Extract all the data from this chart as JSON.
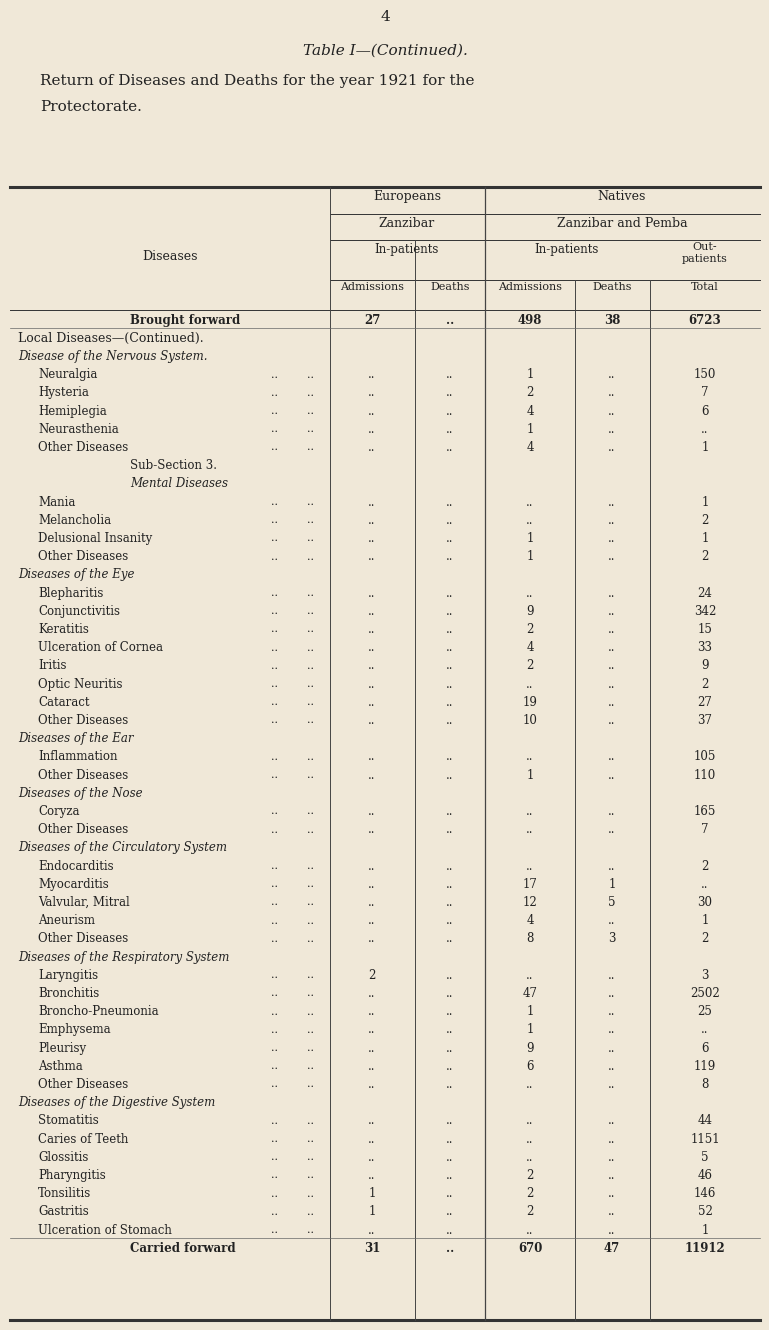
{
  "page_number": "4",
  "title_line1": "Table I—(Continued).",
  "title_line2": "Return of Diseases and Deaths for the year 1921 for the",
  "title_line3": "Protectorate.",
  "bg_color": "#f0e8d8",
  "text_color": "#222222",
  "rows": [
    {
      "label": "Brought forward",
      "indent": 3,
      "style": "normal",
      "eu_adm": "27",
      "eu_dth": "..",
      "nat_adm": "498",
      "nat_dth": "38",
      "total": "6723",
      "bold": true,
      "dots": true
    },
    {
      "label": "Local Diseases—(Continued).",
      "indent": 0,
      "style": "smallcaps",
      "eu_adm": "",
      "eu_dth": "",
      "nat_adm": "",
      "nat_dth": "",
      "total": ""
    },
    {
      "label": "Disease of the Nervous System.",
      "indent": 0,
      "style": "italic",
      "eu_adm": "",
      "eu_dth": "",
      "nat_adm": "",
      "nat_dth": "",
      "total": ""
    },
    {
      "label": "Neuralgia",
      "indent": 1,
      "style": "normal",
      "eu_adm": "..",
      "eu_dth": "..",
      "nat_adm": "1",
      "nat_dth": "..",
      "total": "150",
      "dots": true
    },
    {
      "label": "Hysteria",
      "indent": 1,
      "style": "normal",
      "eu_adm": "..",
      "eu_dth": "..",
      "nat_adm": "2",
      "nat_dth": "..",
      "total": "7",
      "dots": true
    },
    {
      "label": "Hemiplegia",
      "indent": 1,
      "style": "normal",
      "eu_adm": "..",
      "eu_dth": "..",
      "nat_adm": "4",
      "nat_dth": "..",
      "total": "6",
      "dots": true
    },
    {
      "label": "Neurasthenia",
      "indent": 1,
      "style": "normal",
      "eu_adm": "..",
      "eu_dth": "..",
      "nat_adm": "1",
      "nat_dth": "..",
      "total": "..",
      "dots": true
    },
    {
      "label": "Other Diseases",
      "indent": 1,
      "style": "normal",
      "eu_adm": "..",
      "eu_dth": "..",
      "nat_adm": "4",
      "nat_dth": "..",
      "total": "1",
      "dots": true
    },
    {
      "label": "Sub-Section 3.",
      "indent": 3,
      "style": "normal",
      "eu_adm": "",
      "eu_dth": "",
      "nat_adm": "",
      "nat_dth": "",
      "total": ""
    },
    {
      "label": "Mental Diseases",
      "indent": 3,
      "style": "italic",
      "eu_adm": "",
      "eu_dth": "",
      "nat_adm": "",
      "nat_dth": "",
      "total": ""
    },
    {
      "label": "Mania",
      "indent": 1,
      "style": "normal",
      "eu_adm": "..",
      "eu_dth": "..",
      "nat_adm": "..",
      "nat_dth": "..",
      "total": "1",
      "dots": true
    },
    {
      "label": "Melancholia",
      "indent": 1,
      "style": "normal",
      "eu_adm": "..",
      "eu_dth": "..",
      "nat_adm": "..",
      "nat_dth": "..",
      "total": "2",
      "dots": true
    },
    {
      "label": "Delusional Insanity",
      "indent": 1,
      "style": "normal",
      "eu_adm": "..",
      "eu_dth": "..",
      "nat_adm": "1",
      "nat_dth": "..",
      "total": "1",
      "dots": true
    },
    {
      "label": "Other Diseases",
      "indent": 1,
      "style": "normal",
      "eu_adm": "..",
      "eu_dth": "..",
      "nat_adm": "1",
      "nat_dth": "..",
      "total": "2",
      "dots": true
    },
    {
      "label": "Diseases of the Eye",
      "indent": 0,
      "style": "italic",
      "eu_adm": "",
      "eu_dth": "",
      "nat_adm": "",
      "nat_dth": "",
      "total": ""
    },
    {
      "label": "Blepharitis",
      "indent": 1,
      "style": "normal",
      "eu_adm": "..",
      "eu_dth": "..",
      "nat_adm": "..",
      "nat_dth": "..",
      "total": "24",
      "dots": true
    },
    {
      "label": "Conjunctivitis",
      "indent": 1,
      "style": "normal",
      "eu_adm": "..",
      "eu_dth": "..",
      "nat_adm": "9",
      "nat_dth": "..",
      "total": "342",
      "dots": true
    },
    {
      "label": "Keratitis",
      "indent": 1,
      "style": "normal",
      "eu_adm": "..",
      "eu_dth": "..",
      "nat_adm": "2",
      "nat_dth": "..",
      "total": "15",
      "dots": true
    },
    {
      "label": "Ulceration of Cornea",
      "indent": 1,
      "style": "normal",
      "eu_adm": "..",
      "eu_dth": "..",
      "nat_adm": "4",
      "nat_dth": "..",
      "total": "33",
      "dots": true
    },
    {
      "label": "Iritis",
      "indent": 1,
      "style": "normal",
      "eu_adm": "..",
      "eu_dth": "..",
      "nat_adm": "2",
      "nat_dth": "..",
      "total": "9",
      "dots": true
    },
    {
      "label": "Optic Neuritis",
      "indent": 1,
      "style": "normal",
      "eu_adm": "..",
      "eu_dth": "..",
      "nat_adm": "..",
      "nat_dth": "..",
      "total": "2",
      "dots": true
    },
    {
      "label": "Cataract",
      "indent": 1,
      "style": "normal",
      "eu_adm": "..",
      "eu_dth": "..",
      "nat_adm": "19",
      "nat_dth": "..",
      "total": "27",
      "dots": true
    },
    {
      "label": "Other Diseases",
      "indent": 1,
      "style": "normal",
      "eu_adm": "..",
      "eu_dth": "..",
      "nat_adm": "10",
      "nat_dth": "..",
      "total": "37",
      "dots": true
    },
    {
      "label": "Diseases of the Ear",
      "indent": 0,
      "style": "italic",
      "eu_adm": "",
      "eu_dth": "",
      "nat_adm": "",
      "nat_dth": "",
      "total": ""
    },
    {
      "label": "Inflammation",
      "indent": 1,
      "style": "normal",
      "eu_adm": "..",
      "eu_dth": "..",
      "nat_adm": "..",
      "nat_dth": "..",
      "total": "105",
      "dots": true
    },
    {
      "label": "Other Diseases",
      "indent": 1,
      "style": "normal",
      "eu_adm": "..",
      "eu_dth": "..",
      "nat_adm": "1",
      "nat_dth": "..",
      "total": "110",
      "dots": true
    },
    {
      "label": "Diseases of the Nose",
      "indent": 0,
      "style": "italic",
      "eu_adm": "",
      "eu_dth": "",
      "nat_adm": "",
      "nat_dth": "",
      "total": ""
    },
    {
      "label": "Coryza",
      "indent": 1,
      "style": "normal",
      "eu_adm": "..",
      "eu_dth": "..",
      "nat_adm": "..",
      "nat_dth": "..",
      "total": "165",
      "dots": true
    },
    {
      "label": "Other Diseases",
      "indent": 1,
      "style": "normal",
      "eu_adm": "..",
      "eu_dth": "..",
      "nat_adm": "..",
      "nat_dth": "..",
      "total": "7",
      "dots": true
    },
    {
      "label": "Diseases of the Circulatory System",
      "indent": 0,
      "style": "italic",
      "eu_adm": "",
      "eu_dth": "",
      "nat_adm": "",
      "nat_dth": "",
      "total": ""
    },
    {
      "label": "Endocarditis",
      "indent": 1,
      "style": "normal",
      "eu_adm": "..",
      "eu_dth": "..",
      "nat_adm": "..",
      "nat_dth": "..",
      "total": "2",
      "dots": true
    },
    {
      "label": "Myocarditis",
      "indent": 1,
      "style": "normal",
      "eu_adm": "..",
      "eu_dth": "..",
      "nat_adm": "17",
      "nat_dth": "1",
      "total": "..",
      "dots": true
    },
    {
      "label": "Valvular, Mitral",
      "indent": 1,
      "style": "normal",
      "eu_adm": "..",
      "eu_dth": "..",
      "nat_adm": "12",
      "nat_dth": "5",
      "total": "30",
      "dots": true
    },
    {
      "label": "Aneurism",
      "indent": 1,
      "style": "normal",
      "eu_adm": "..",
      "eu_dth": "..",
      "nat_adm": "4",
      "nat_dth": "..",
      "total": "1",
      "dots": true
    },
    {
      "label": "Other Diseases",
      "indent": 1,
      "style": "normal",
      "eu_adm": "..",
      "eu_dth": "..",
      "nat_adm": "8",
      "nat_dth": "3",
      "total": "2",
      "dots": true
    },
    {
      "label": "Diseases of the Respiratory System",
      "indent": 0,
      "style": "italic",
      "eu_adm": "",
      "eu_dth": "",
      "nat_adm": "",
      "nat_dth": "",
      "total": ""
    },
    {
      "label": "Laryngitis",
      "indent": 1,
      "style": "normal",
      "eu_adm": "2",
      "eu_dth": "..",
      "nat_adm": "..",
      "nat_dth": "..",
      "total": "3",
      "dots": true
    },
    {
      "label": "Bronchitis",
      "indent": 1,
      "style": "normal",
      "eu_adm": "..",
      "eu_dth": "..",
      "nat_adm": "47",
      "nat_dth": "..",
      "total": "2502",
      "dots": true
    },
    {
      "label": "Broncho-Pneumonia",
      "indent": 1,
      "style": "normal",
      "eu_adm": "..",
      "eu_dth": "..",
      "nat_adm": "1",
      "nat_dth": "..",
      "total": "25",
      "dots": true
    },
    {
      "label": "Emphysema",
      "indent": 1,
      "style": "normal",
      "eu_adm": "..",
      "eu_dth": "..",
      "nat_adm": "1",
      "nat_dth": "..",
      "total": "..",
      "dots": true
    },
    {
      "label": "Pleurisy",
      "indent": 1,
      "style": "normal",
      "eu_adm": "..",
      "eu_dth": "..",
      "nat_adm": "9",
      "nat_dth": "..",
      "total": "6",
      "dots": true
    },
    {
      "label": "Asthma",
      "indent": 1,
      "style": "normal",
      "eu_adm": "..",
      "eu_dth": "..",
      "nat_adm": "6",
      "nat_dth": "..",
      "total": "119",
      "dots": true
    },
    {
      "label": "Other Diseases",
      "indent": 1,
      "style": "normal",
      "eu_adm": "..",
      "eu_dth": "..",
      "nat_adm": "..",
      "nat_dth": "..",
      "total": "8",
      "dots": true
    },
    {
      "label": "Diseases of the Digestive System",
      "indent": 0,
      "style": "italic",
      "eu_adm": "",
      "eu_dth": "",
      "nat_adm": "",
      "nat_dth": "",
      "total": ""
    },
    {
      "label": "Stomatitis",
      "indent": 1,
      "style": "normal",
      "eu_adm": "..",
      "eu_dth": "..",
      "nat_adm": "..",
      "nat_dth": "..",
      "total": "44",
      "dots": true
    },
    {
      "label": "Caries of Teeth",
      "indent": 1,
      "style": "normal",
      "eu_adm": "..",
      "eu_dth": "..",
      "nat_adm": "..",
      "nat_dth": "..",
      "total": "1151",
      "dots": true
    },
    {
      "label": "Glossitis",
      "indent": 1,
      "style": "normal",
      "eu_adm": "..",
      "eu_dth": "..",
      "nat_adm": "..",
      "nat_dth": "..",
      "total": "5",
      "dots": true
    },
    {
      "label": "Pharyngitis",
      "indent": 1,
      "style": "normal",
      "eu_adm": "..",
      "eu_dth": "..",
      "nat_adm": "2",
      "nat_dth": "..",
      "total": "46",
      "dots": true
    },
    {
      "label": "Tonsilitis",
      "indent": 1,
      "style": "normal",
      "eu_adm": "1",
      "eu_dth": "..",
      "nat_adm": "2",
      "nat_dth": "..",
      "total": "146",
      "dots": true
    },
    {
      "label": "Gastritis",
      "indent": 1,
      "style": "normal",
      "eu_adm": "1",
      "eu_dth": "..",
      "nat_adm": "2",
      "nat_dth": "..",
      "total": "52",
      "dots": true
    },
    {
      "label": "Ulceration of Stomach",
      "indent": 1,
      "style": "normal",
      "eu_adm": "..",
      "eu_dth": "..",
      "nat_adm": "..",
      "nat_dth": "..",
      "total": "1",
      "dots": true
    },
    {
      "label": "Carried forward",
      "indent": 3,
      "style": "normal",
      "eu_adm": "31",
      "eu_dth": "..",
      "nat_adm": "670",
      "nat_dth": "47",
      "total": "11912",
      "bold": true,
      "dots": true
    }
  ]
}
